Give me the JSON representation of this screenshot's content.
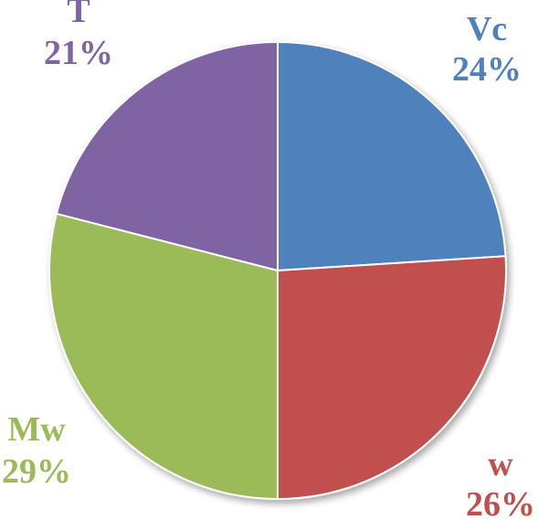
{
  "chart_data": {
    "type": "pie",
    "title": "",
    "categories": [
      "Vc",
      "w",
      "Mw",
      "T"
    ],
    "values": [
      24,
      26,
      29,
      21
    ],
    "value_labels": [
      "24%",
      "26%",
      "29%",
      "21%"
    ],
    "colors": [
      "#4f81bd",
      "#c0504d",
      "#9bbb59",
      "#8064a2"
    ],
    "label_colors": [
      "#4f81bd",
      "#c0504d",
      "#9bbb59",
      "#8064a2"
    ],
    "start_angle_deg": 0,
    "direction": "clockwise",
    "legend": "none"
  }
}
